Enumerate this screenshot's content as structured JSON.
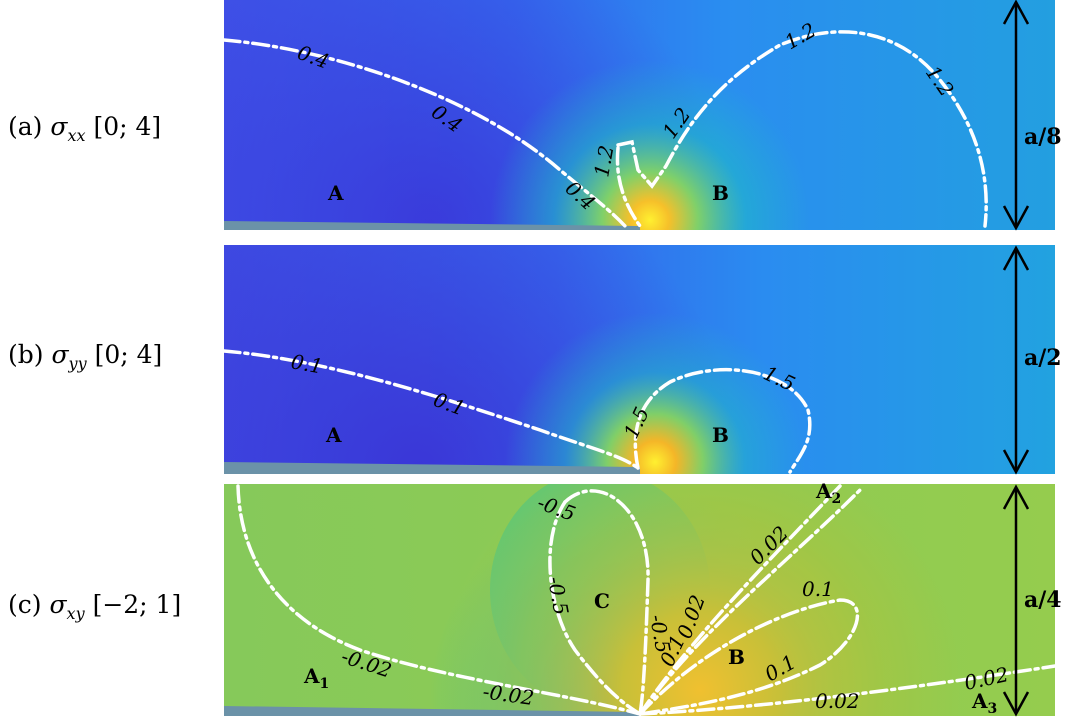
{
  "panels": [
    {
      "id": "a",
      "label_prefix": "(a)",
      "label_symbol": "σ",
      "label_sub": "xx",
      "label_range": "[0; 4]",
      "dimension": "a/8",
      "regions": [
        {
          "name": "A",
          "sub": ""
        },
        {
          "name": "B",
          "sub": ""
        }
      ],
      "contour_labels": [
        "0.4",
        "0.4",
        "0.4",
        "1.2",
        "1.2",
        "1.2",
        "1.2",
        "1.2"
      ]
    },
    {
      "id": "b",
      "label_prefix": "(b)",
      "label_symbol": "σ",
      "label_sub": "yy",
      "label_range": "[0; 4]",
      "dimension": "a/2",
      "regions": [
        {
          "name": "A",
          "sub": ""
        },
        {
          "name": "B",
          "sub": ""
        }
      ],
      "contour_labels": [
        "0.1",
        "0.1",
        "1.5",
        "1.5"
      ]
    },
    {
      "id": "c",
      "label_prefix": "(c)",
      "label_symbol": "σ",
      "label_sub": "xy",
      "label_range": "[−2; 1]",
      "dimension": "a/4",
      "regions": [
        {
          "name": "C",
          "sub": ""
        },
        {
          "name": "B",
          "sub": ""
        },
        {
          "name": "A",
          "sub": "1"
        },
        {
          "name": "A",
          "sub": "2"
        },
        {
          "name": "A",
          "sub": "3"
        }
      ],
      "contour_labels": [
        "-0.5",
        "-0.5",
        "-0.5",
        "0.02",
        "0.02",
        "0.1",
        "0.1",
        "0.1",
        "0.1",
        "-0.02",
        "-0.02",
        "0.02",
        "0.02"
      ]
    }
  ],
  "colors": {
    "blue_deep": "#3b3ee0",
    "blue_mid": "#2f7cf0",
    "cyan": "#1fb4c8",
    "green": "#8ccc50",
    "yellow": "#ffe020",
    "contour": "#ffffff",
    "substrate": "#6b92a8"
  }
}
